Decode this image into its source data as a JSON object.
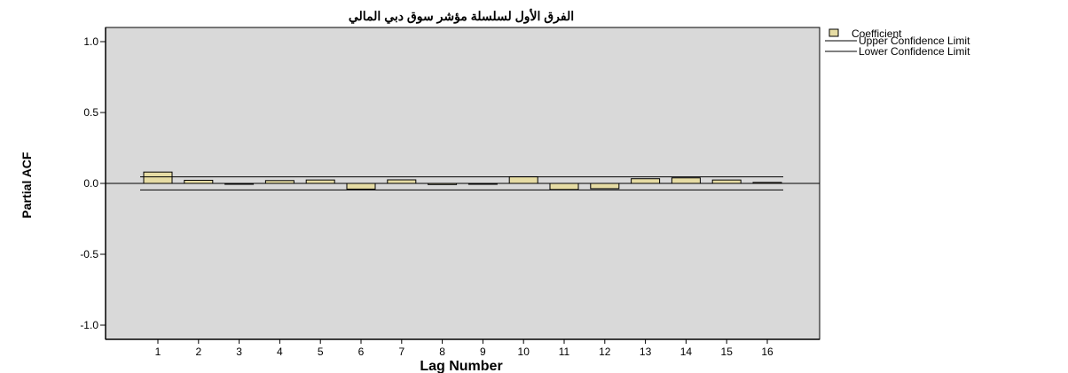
{
  "chart_data": {
    "type": "bar",
    "title": "الفرق الأول لسلسلة مؤشر سوق دبي المالي",
    "xlabel": "Lag Number",
    "ylabel": "Partial ACF",
    "categories": [
      "1",
      "2",
      "3",
      "4",
      "5",
      "6",
      "7",
      "8",
      "9",
      "10",
      "11",
      "12",
      "13",
      "14",
      "15",
      "16"
    ],
    "series": [
      {
        "name": "Coefficient",
        "values": [
          0.08,
          0.022,
          -0.005,
          0.02,
          0.024,
          -0.04,
          0.025,
          -0.008,
          -0.004,
          0.047,
          -0.043,
          -0.037,
          0.033,
          0.039,
          0.024,
          0.007
        ]
      }
    ],
    "confidence_limits": {
      "upper": 0.046,
      "lower": -0.046
    },
    "upper_limit_label": "Upper Confidence Limit",
    "lower_limit_label": "Lower Confidence Limit",
    "ylim": [
      -1.1,
      1.1
    ],
    "yticks": [
      1.0,
      0.5,
      0.0,
      -0.5,
      -1.0
    ],
    "ytick_labels": [
      "1.0",
      "0.5",
      "0.0",
      "-0.5",
      "-1.0"
    ],
    "grid": false,
    "legend_position": "top-right",
    "colors": {
      "plot_background": "#d9d9d9",
      "bar_fill": "#e6dca4",
      "bar_stroke": "#000000",
      "limit_line": "#000000"
    }
  }
}
